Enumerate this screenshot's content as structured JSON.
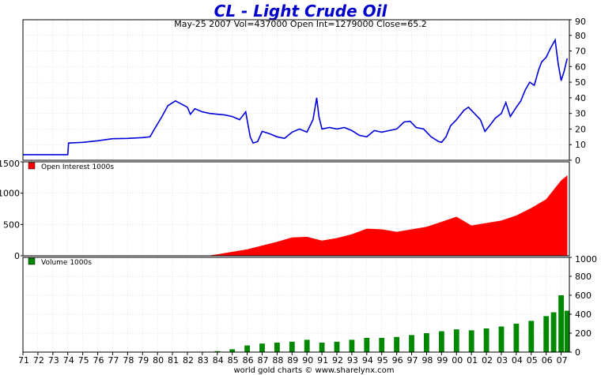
{
  "chart_data": [
    {
      "type": "line",
      "title": "CL  -  Light Crude Oil",
      "subtitle": "May-25  2007    Vol=437000   Open Int=1279000   Close=65.2",
      "ylim": [
        0,
        90
      ],
      "y_ticks": [
        "0",
        "10",
        "20",
        "30",
        "40",
        "50",
        "60",
        "70",
        "80",
        "90"
      ],
      "y_axis_side": "right",
      "color": "#0000dd",
      "x": [
        1971.0,
        1973.0,
        1974.0,
        1974.05,
        1975.0,
        1976.0,
        1977.0,
        1978.0,
        1979.0,
        1979.5,
        1979.8,
        1980.3,
        1980.7,
        1981.2,
        1981.6,
        1982.0,
        1982.2,
        1982.5,
        1983.0,
        1983.5,
        1984.0,
        1984.5,
        1985.0,
        1985.5,
        1985.9,
        1986.2,
        1986.4,
        1986.7,
        1987.0,
        1987.5,
        1988.0,
        1988.5,
        1989.0,
        1989.5,
        1990.0,
        1990.4,
        1990.65,
        1990.8,
        1991.0,
        1991.5,
        1992.0,
        1992.5,
        1993.0,
        1993.5,
        1994.0,
        1994.5,
        1995.0,
        1995.5,
        1996.0,
        1996.5,
        1996.9,
        1997.3,
        1997.8,
        1998.3,
        1998.8,
        1999.0,
        1999.3,
        1999.6,
        2000.0,
        2000.5,
        2000.8,
        2001.2,
        2001.6,
        2001.9,
        2002.2,
        2002.6,
        2003.0,
        2003.3,
        2003.6,
        2004.0,
        2004.3,
        2004.6,
        2004.9,
        2005.2,
        2005.5,
        2005.7,
        2006.0,
        2006.3,
        2006.6,
        2006.8,
        2007.0,
        2007.2,
        2007.4
      ],
      "y": [
        3.6,
        3.6,
        3.6,
        11.0,
        11.5,
        12.5,
        13.8,
        14.0,
        14.5,
        15.0,
        20.0,
        28.0,
        35.0,
        38.0,
        36.0,
        34.0,
        29.5,
        33.0,
        31.0,
        30.0,
        29.5,
        29.0,
        28.0,
        26.0,
        31.0,
        15.0,
        11.0,
        12.0,
        18.5,
        17.0,
        15.0,
        14.0,
        18.0,
        20.0,
        18.0,
        26.0,
        40.0,
        28.0,
        20.0,
        21.0,
        20.0,
        21.0,
        19.0,
        16.0,
        15.0,
        19.0,
        18.0,
        19.0,
        20.0,
        24.5,
        25.0,
        21.0,
        20.0,
        15.0,
        12.0,
        11.5,
        15.0,
        22.0,
        26.0,
        32.0,
        34.0,
        30.0,
        26.0,
        18.5,
        22.0,
        27.0,
        30.0,
        37.0,
        28.0,
        34.0,
        38.0,
        45.0,
        50.0,
        48.0,
        58.0,
        63.0,
        66.0,
        72.0,
        77.0,
        62.0,
        51.0,
        57.0,
        65.2
      ]
    },
    {
      "type": "area",
      "legend": "Open Interest  1000s",
      "ylim": [
        0,
        1500
      ],
      "y_ticks": [
        "0",
        "500",
        "1000",
        "1500"
      ],
      "y_axis_side": "left",
      "color": "#ff0000",
      "x": [
        1983.4,
        1984.0,
        1985.0,
        1986.0,
        1987.0,
        1988.0,
        1989.0,
        1990.0,
        1991.0,
        1992.0,
        1993.0,
        1994.0,
        1995.0,
        1996.0,
        1997.0,
        1998.0,
        1999.0,
        2000.0,
        2001.0,
        2002.0,
        2003.0,
        2004.0,
        2005.0,
        2006.0,
        2006.5,
        2007.0,
        2007.4
      ],
      "y": [
        0,
        20,
        60,
        100,
        160,
        220,
        290,
        300,
        240,
        280,
        340,
        430,
        420,
        380,
        420,
        460,
        540,
        620,
        480,
        520,
        560,
        640,
        760,
        900,
        1050,
        1200,
        1279
      ]
    },
    {
      "type": "bar",
      "legend": "Volume  1000s",
      "ylim": [
        0,
        1000
      ],
      "y_ticks": [
        "0",
        "200",
        "400",
        "600",
        "800",
        "1000"
      ],
      "y_axis_side": "right",
      "color": "#008800",
      "x": [
        1983.4,
        1984.0,
        1985.0,
        1986.0,
        1987.0,
        1988.0,
        1989.0,
        1990.0,
        1991.0,
        1992.0,
        1993.0,
        1994.0,
        1995.0,
        1996.0,
        1997.0,
        1998.0,
        1999.0,
        2000.0,
        2001.0,
        2002.0,
        2003.0,
        2004.0,
        2005.0,
        2006.0,
        2006.5,
        2007.0,
        2007.4
      ],
      "y": [
        0,
        10,
        30,
        70,
        90,
        100,
        110,
        130,
        100,
        110,
        130,
        150,
        150,
        160,
        180,
        200,
        220,
        240,
        230,
        250,
        270,
        300,
        330,
        380,
        420,
        600,
        437
      ]
    }
  ],
  "x_ticks": [
    "71",
    "72",
    "73",
    "74",
    "75",
    "76",
    "77",
    "78",
    "79",
    "80",
    "81",
    "82",
    "83",
    "84",
    "85",
    "86",
    "87",
    "88",
    "89",
    "90",
    "91",
    "92",
    "93",
    "94",
    "95",
    "96",
    "97",
    "98",
    "99",
    "00",
    "01",
    "02",
    "03",
    "04",
    "05",
    "06",
    "07"
  ],
  "footer": "world gold charts © www.sharelynx.com",
  "colors": {
    "title": "#0000cc",
    "frame": "#000000",
    "grid": "#cccccc"
  }
}
